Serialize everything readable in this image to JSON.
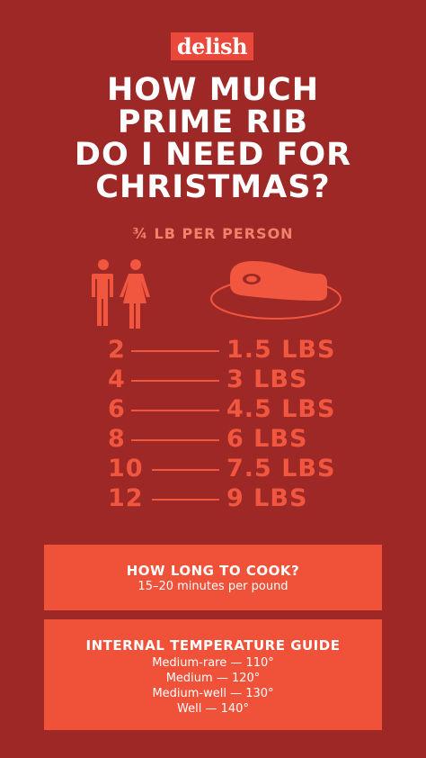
{
  "brand": "delish",
  "title": [
    "HOW MUCH",
    "PRIME RIB",
    "DO I NEED FOR",
    "CHRISTMAS?"
  ],
  "subtitle": "¾ LB PER PERSON",
  "icons": {
    "people": "man-woman-icon",
    "meat": "steak-on-plate-icon"
  },
  "servings": [
    {
      "people": "2",
      "amount": "1.5 LBS"
    },
    {
      "people": "4",
      "amount": "3 LBS"
    },
    {
      "people": "6",
      "amount": "4.5 LBS"
    },
    {
      "people": "8",
      "amount": "6 LBS"
    },
    {
      "people": "10",
      "amount": "7.5 LBS"
    },
    {
      "people": "12",
      "amount": "9 LBS"
    }
  ],
  "cook": {
    "heading": "HOW LONG TO COOK?",
    "text": "15–20 minutes per pound"
  },
  "temperature": {
    "heading": "INTERNAL TEMPERATURE GUIDE",
    "items": [
      "Medium-rare — 110°",
      "Medium — 120°",
      "Medium-well — 130°",
      "Well — 140°"
    ]
  },
  "colors": {
    "background": "#9e2826",
    "accent": "#f1563f",
    "box": "#ef5139",
    "text": "#ffffff"
  }
}
